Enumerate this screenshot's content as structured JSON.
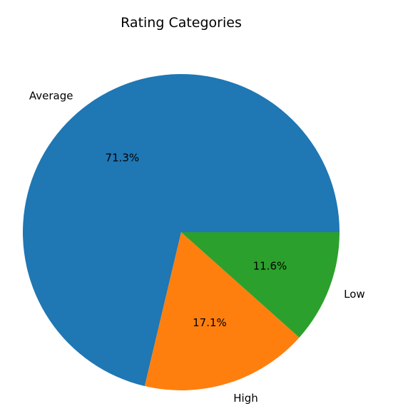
{
  "chart_data": {
    "type": "pie",
    "title": "Rating Categories",
    "categories": [
      "Average",
      "High",
      "Low"
    ],
    "values": [
      71.3,
      17.1,
      11.6
    ],
    "value_labels": [
      "71.3%",
      "17.1%",
      "11.6%"
    ],
    "colors": [
      "#1f77b4",
      "#ff7f0e",
      "#2ca02c"
    ],
    "legend": "none"
  }
}
